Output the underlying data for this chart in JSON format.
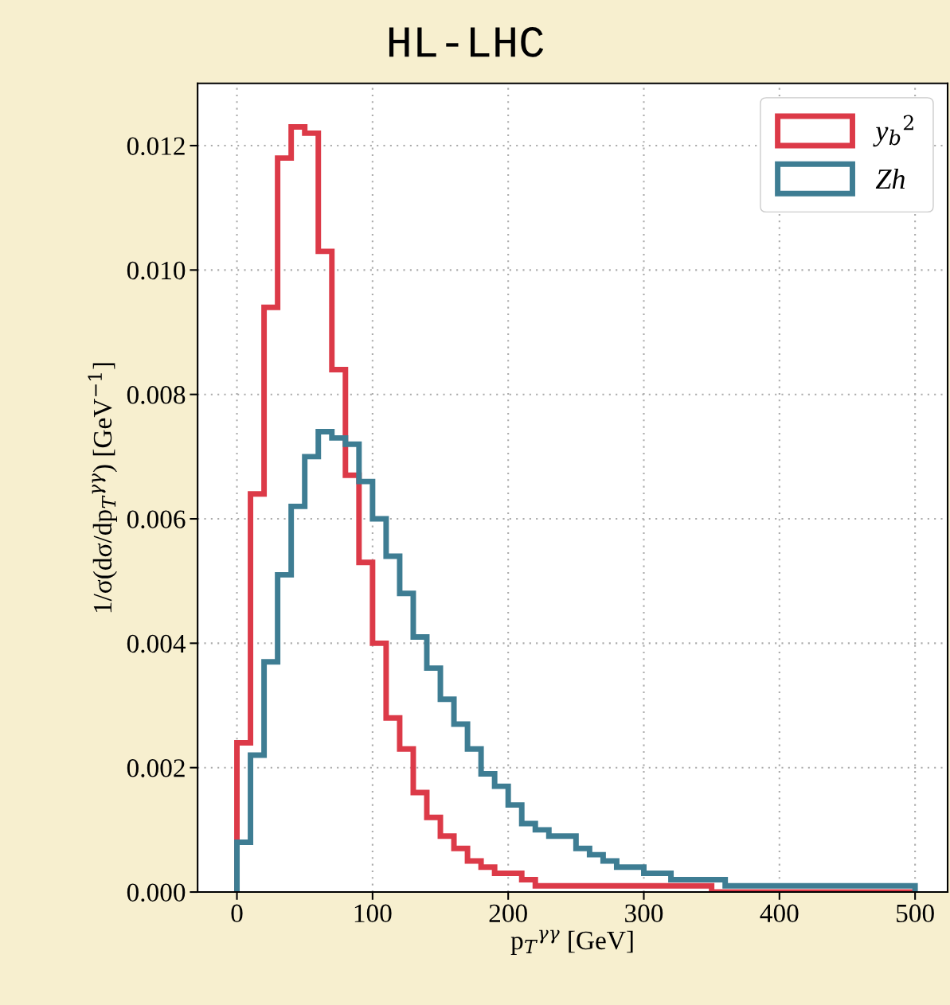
{
  "chart_data": {
    "type": "histogram",
    "title": "HL-LHC",
    "xlabel": "p$_{T}$$^{γγ}$ [GeV]",
    "ylabel": "1/σ(dσ/dp$_{T}$$^{γγ}$) [GeV$^{−1}$]",
    "bins": [
      0,
      10,
      20,
      30,
      40,
      50,
      60,
      70,
      80,
      90,
      100,
      110,
      120,
      130,
      140,
      150,
      160,
      170,
      180,
      190,
      200,
      210,
      220,
      230,
      240,
      250,
      260,
      270,
      280,
      290,
      300,
      310,
      320,
      330,
      340,
      350,
      360,
      370,
      380,
      390,
      400,
      410,
      420,
      430,
      440,
      450,
      460,
      470,
      480,
      490,
      500
    ],
    "series": [
      {
        "name": "y$_{b}$$^{2}$",
        "color": "#dc3a48",
        "values": [
          0.0024,
          0.0064,
          0.0094,
          0.0118,
          0.0123,
          0.0122,
          0.0103,
          0.0084,
          0.0067,
          0.0053,
          0.004,
          0.0028,
          0.0023,
          0.0016,
          0.0012,
          0.0009,
          0.0007,
          0.0005,
          0.0004,
          0.0003,
          0.0003,
          0.0002,
          0.0001,
          0.0001,
          0.0001,
          0.0001,
          0.0001,
          0.0001,
          0.0001,
          0.0001,
          0.0001,
          0.0001,
          0.0001,
          0.0001,
          0.0001,
          0,
          0,
          0,
          0,
          0,
          0,
          0,
          0,
          0,
          0,
          0,
          0,
          0,
          0,
          0
        ]
      },
      {
        "name": "Zh",
        "color": "#3e7d93",
        "values": [
          0.0008,
          0.0022,
          0.0037,
          0.0051,
          0.0062,
          0.007,
          0.0074,
          0.0073,
          0.0072,
          0.0066,
          0.006,
          0.0054,
          0.0048,
          0.0041,
          0.0036,
          0.0031,
          0.0027,
          0.0023,
          0.0019,
          0.0017,
          0.0014,
          0.0011,
          0.001,
          0.0009,
          0.0009,
          0.0007,
          0.0006,
          0.0005,
          0.0004,
          0.0004,
          0.0003,
          0.0003,
          0.0002,
          0.0002,
          0.0002,
          0.0002,
          0.0001,
          0.0001,
          0.0001,
          0.0001,
          0.0001,
          0.0001,
          0.0001,
          0.0001,
          0.0001,
          0.0001,
          0.0001,
          0.0001,
          0.0001,
          0.0001
        ]
      }
    ],
    "xlim": [
      -29,
      524
    ],
    "xticks": [
      0,
      100,
      200,
      300,
      400,
      500
    ],
    "ylim": [
      0,
      0.013
    ],
    "yticks": [
      {
        "value": 0,
        "label": "0.000"
      },
      {
        "value": 0.002,
        "label": "0.002"
      },
      {
        "value": 0.004,
        "label": "0.004"
      },
      {
        "value": 0.006,
        "label": "0.006"
      },
      {
        "value": 0.008,
        "label": "0.008"
      },
      {
        "value": 0.01,
        "label": "0.010"
      },
      {
        "value": 0.012,
        "label": "0.012"
      }
    ],
    "grid": true,
    "legend": "top right"
  }
}
